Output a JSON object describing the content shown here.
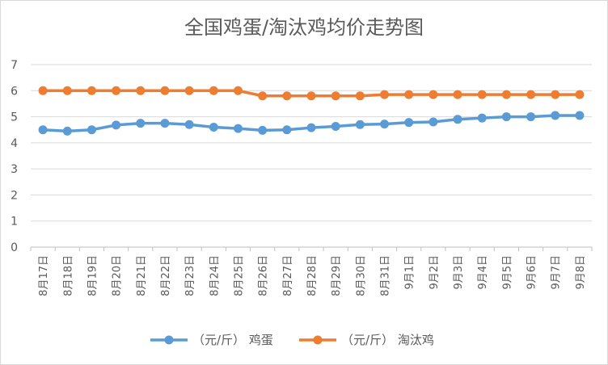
{
  "chart_data": {
    "type": "line",
    "title": "全国鸡蛋/淘汰鸡均价走势图",
    "categories": [
      "8月17日",
      "8月18日",
      "8月19日",
      "8月20日",
      "8月21日",
      "8月22日",
      "8月23日",
      "8月24日",
      "8月25日",
      "8月26日",
      "8月27日",
      "8月28日",
      "8月29日",
      "8月30日",
      "8月31日",
      "9月1日",
      "9月2日",
      "9月3日",
      "9月4日",
      "9月5日",
      "9月6日",
      "9月7日",
      "9月8日"
    ],
    "series": [
      {
        "name": "（元/斤） 鸡蛋",
        "color": "#5b9bd5",
        "values": [
          4.5,
          4.45,
          4.5,
          4.68,
          4.75,
          4.75,
          4.7,
          4.6,
          4.55,
          4.48,
          4.5,
          4.58,
          4.63,
          4.7,
          4.72,
          4.78,
          4.8,
          4.9,
          4.95,
          5.0,
          5.0,
          5.05,
          5.05
        ]
      },
      {
        "name": "（元/斤） 淘汰鸡",
        "color": "#ed7d31",
        "values": [
          6.0,
          6.0,
          6.0,
          6.0,
          6.0,
          6.0,
          6.0,
          6.0,
          6.0,
          5.8,
          5.8,
          5.8,
          5.8,
          5.8,
          5.85,
          5.85,
          5.85,
          5.85,
          5.85,
          5.85,
          5.85,
          5.85,
          5.85
        ]
      }
    ],
    "ylim": [
      0,
      7
    ],
    "yticks": [
      "0",
      "1",
      "2",
      "3",
      "4",
      "5",
      "6",
      "7"
    ],
    "grid": true,
    "legend": "bottom",
    "xlabel": "",
    "ylabel": ""
  }
}
